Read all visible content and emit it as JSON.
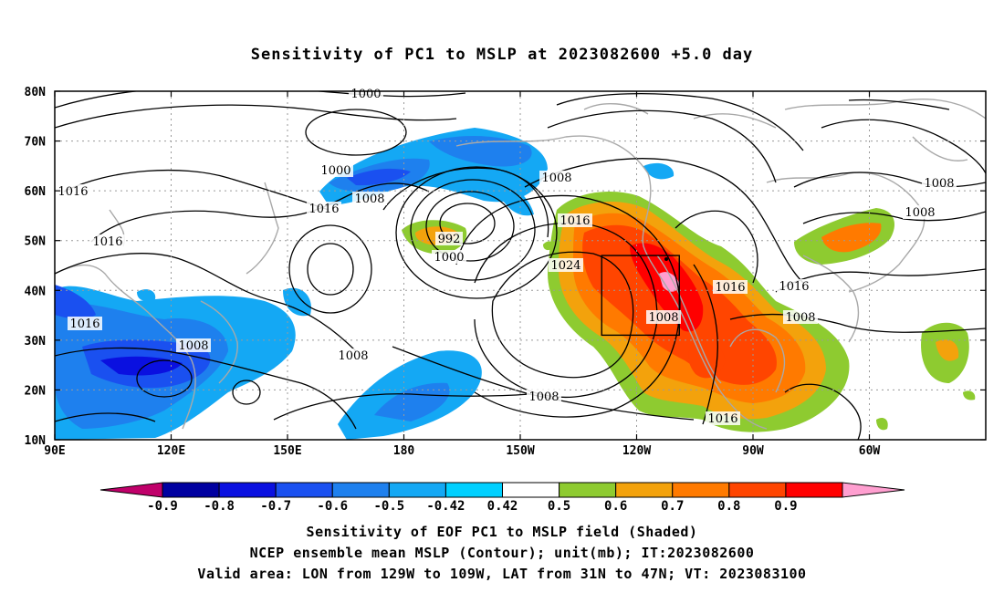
{
  "title": "Sensitivity of PC1 to MSLP at 2023082600 +5.0 day",
  "lat_labels": [
    "80N",
    "70N",
    "60N",
    "50N",
    "40N",
    "30N",
    "20N",
    "10N"
  ],
  "lon_labels": [
    "90E",
    "120E",
    "150E",
    "180",
    "150W",
    "120W",
    "90W",
    "60W"
  ],
  "colorbar": {
    "colors": [
      "#c0006a",
      "#0000a0",
      "#0a10e0",
      "#1a50f0",
      "#1e80ee",
      "#14a8f4",
      "#00d0ff",
      "#ffffff",
      "#8ecb30",
      "#f3a20c",
      "#ff7a00",
      "#ff4500",
      "#ff0000",
      "#ff9fd0"
    ],
    "tick_labels": [
      "-0.9",
      "-0.8",
      "-0.7",
      "-0.6",
      "-0.5",
      "-0.42",
      "0.42",
      "0.5",
      "0.6",
      "0.7",
      "0.8",
      "0.9"
    ]
  },
  "contour_labels": [
    "1000",
    "1000",
    "1008",
    "1016",
    "1016",
    "1016",
    "992",
    "1000",
    "1008",
    "1016",
    "1024",
    "1008",
    "1016",
    "1008",
    "1008",
    "1008",
    "1016",
    "1016",
    "1008",
    "1016",
    "1008",
    "1008"
  ],
  "valid_box": {
    "lon": [
      -129,
      -109
    ],
    "lat": [
      31,
      47
    ]
  },
  "captions": [
    "Sensitivity of EOF PC1 to MSLP field (Shaded)",
    "NCEP ensemble mean MSLP (Contour); unit(mb); IT:2023082600",
    "Valid area: LON from 129W to 109W, LAT from 31N to 47N; VT: 2023083100"
  ]
}
